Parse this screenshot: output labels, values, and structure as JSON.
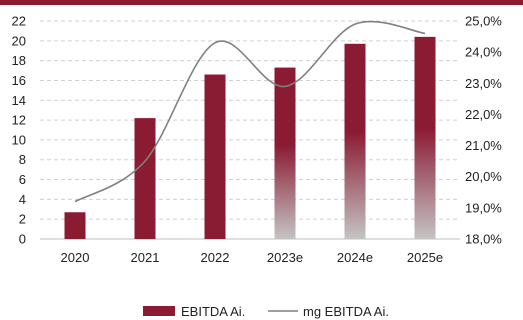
{
  "chart_data": {
    "type": "bar",
    "categories": [
      "2020",
      "2021",
      "2022",
      "2023e",
      "2024e",
      "2025e"
    ],
    "series": [
      {
        "name": "EBITDA Ai.",
        "type": "bar",
        "axis": "left",
        "values": [
          2.7,
          12.2,
          16.6,
          17.3,
          19.7,
          20.4
        ],
        "color": "#8b1a33"
      },
      {
        "name": "mg EBITDA Ai.",
        "type": "line",
        "axis": "right",
        "values": [
          19.2,
          20.5,
          24.3,
          22.9,
          24.9,
          24.6
        ],
        "color": "#808080"
      }
    ],
    "y_left": {
      "min": 0,
      "max": 22,
      "ticks": [
        0,
        2,
        4,
        6,
        8,
        10,
        12,
        14,
        16,
        18,
        20,
        22
      ]
    },
    "y_right": {
      "min": 18,
      "max": 25,
      "ticks": [
        18,
        19,
        20,
        21,
        22,
        23,
        24,
        25
      ],
      "tick_labels": [
        "18,0%",
        "19,0%",
        "20,0%",
        "21,0%",
        "22,0%",
        "23,0%",
        "24,0%",
        "25,0%"
      ]
    },
    "gradient_bars": [
      "2023e",
      "2024e",
      "2025e"
    ],
    "gridlines": "horizontal-dashed",
    "legend_position": "bottom",
    "title": "",
    "xlabel": "",
    "ylabel": ""
  },
  "colors": {
    "bar": "#8b1a33",
    "bar_fade": "#c4c4c4",
    "line": "#808080",
    "top_border": "#8b1a33",
    "grid": "#d0d0d0"
  }
}
